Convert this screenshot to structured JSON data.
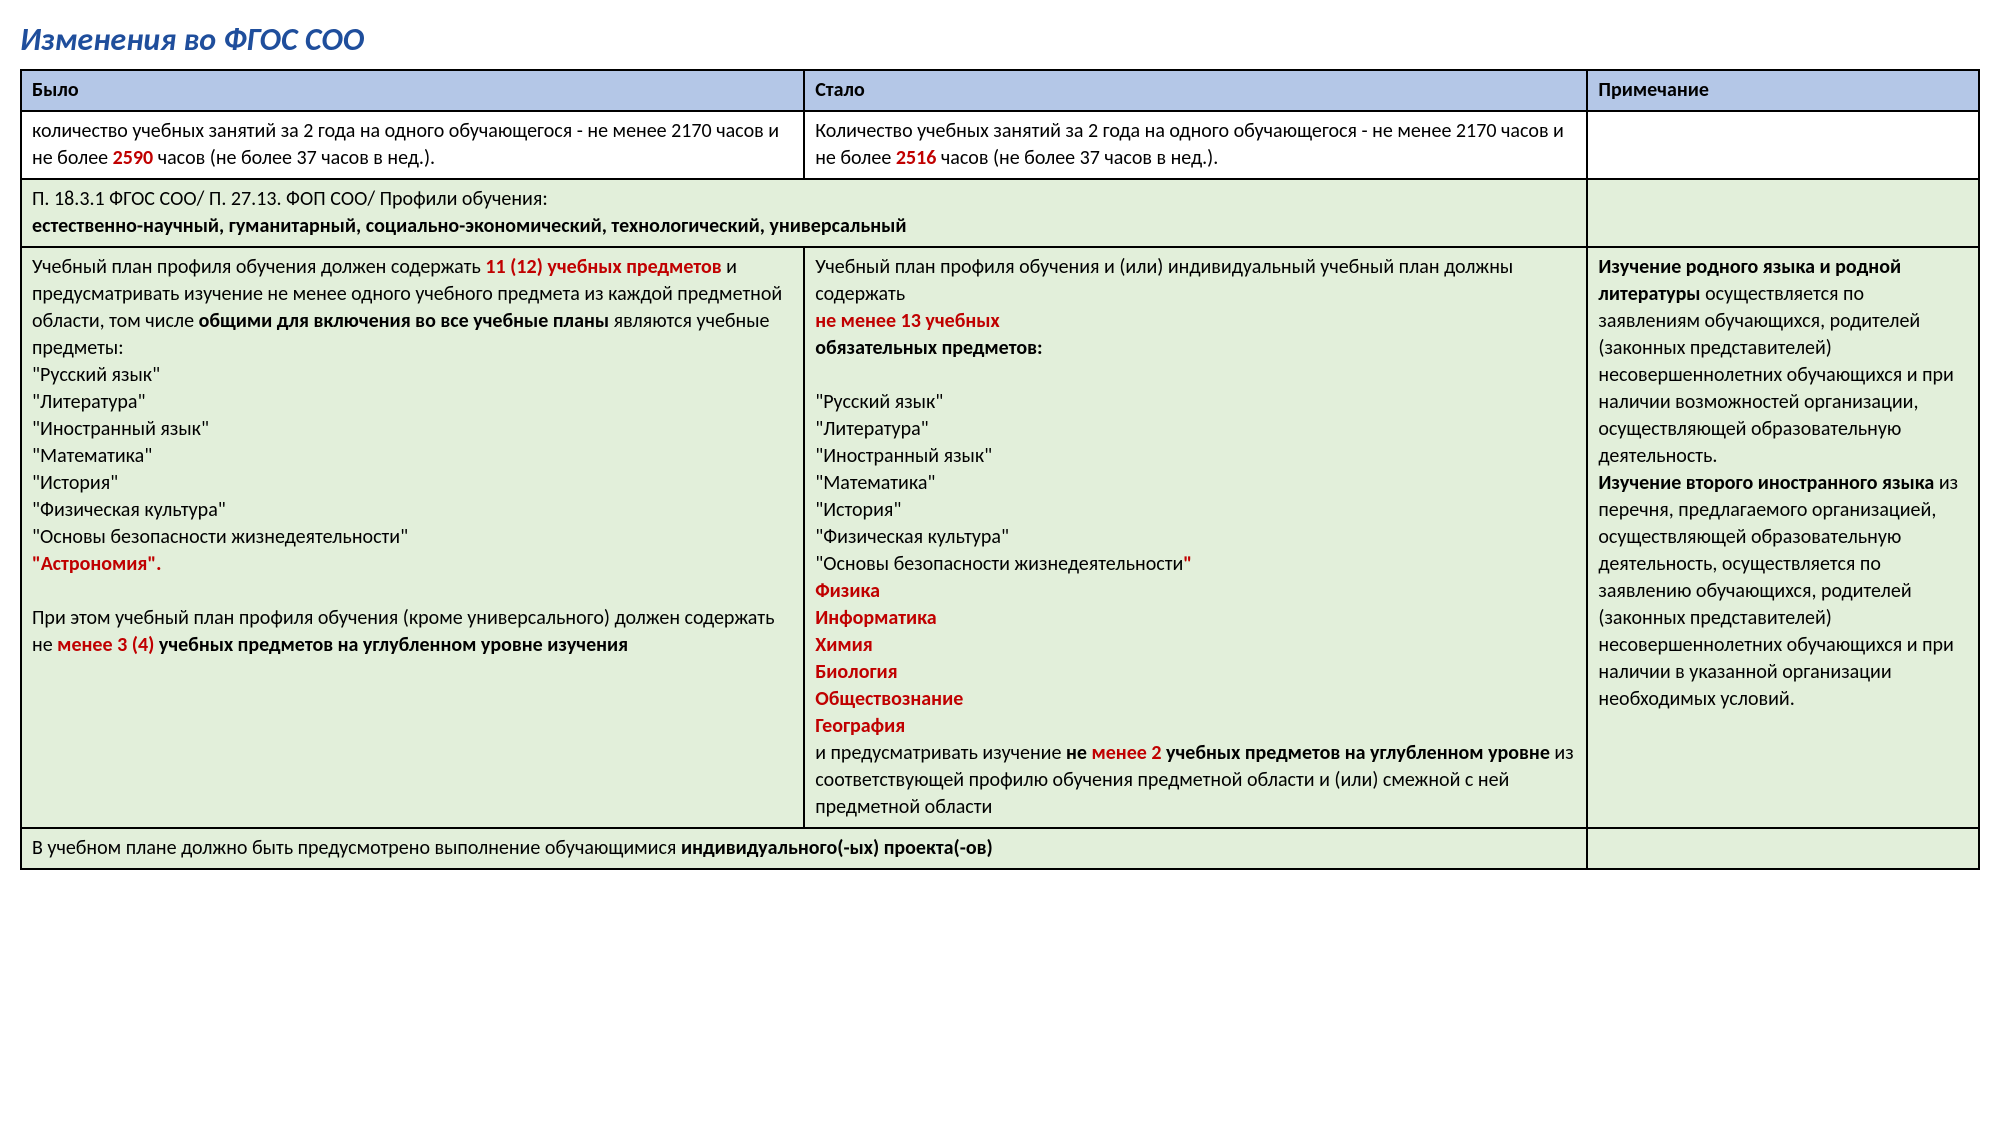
{
  "title": "Изменения во ФГОС СОО",
  "colors": {
    "title": "#1f4e9c",
    "header_bg": "#b4c7e7",
    "green_bg": "#e2efda",
    "white_bg": "#ffffff",
    "accent_red": "#c00000",
    "border": "#000000"
  },
  "column_widths_pct": [
    40,
    40,
    20
  ],
  "headers": {
    "was": "Было",
    "now": "Стало",
    "note": "Примечание"
  },
  "row_hours": {
    "was_pre": "количество учебных занятий за 2 года на одного обучающегося - не менее 2170 часов и не более ",
    "was_red": "2590",
    "was_post": " часов (не более 37 часов в нед.).",
    "now_pre": "Количество учебных занятий за 2 года на одного обучающегося - не менее 2170 часов и не более ",
    "now_red": "2516",
    "now_post": " часов (не более 37 часов в нед.)."
  },
  "row_profiles": {
    "line1": "П. 18.3.1 ФГОС СОО/ П. 27.13. ФОП СОО/ Профили обучения:",
    "line2": "естественно-научный, гуманитарный, социально-экономический, технологический, универсальный"
  },
  "row_plan": {
    "was": {
      "p1_a": "Учебный план профиля обучения должен содержать ",
      "p1_red": "11 (12) учебных предметов",
      "p1_b": " и предусматривать изучение не менее одного учебного предмета из каждой предметной области, том числе ",
      "p1_bold": "общими для включения во все учебные планы",
      "p1_c": " являются учебные предметы:",
      "subjects_black": [
        "\"Русский язык\"",
        "\"Литература\"",
        "\"Иностранный язык\"",
        "\"Математика\"",
        "\"История\"",
        "\"Физическая культура\"",
        "\"Основы безопасности жизнедеятельности\""
      ],
      "subjects_red": [
        "\"Астрономия\"."
      ],
      "p2_a": "При этом учебный план профиля обучения (кроме универсального) должен содержать не ",
      "p2_red": "менее 3 (4)",
      "p2_b": " ",
      "p2_bold": "учебных предметов на углубленном уровне изучения"
    },
    "now": {
      "p1_a": "Учебный план профиля обучения и (или) индивидуальный учебный план должны содержать",
      "p1_red": "не менее 13 учебных",
      "p1_bold": "обязательных предметов:",
      "subjects_black": [
        "\"Русский язык\"",
        "\"Литература\"",
        "\"Иностранный язык\"",
        "\"Математика\"",
        "\"История\"",
        "\"Физическая культура\""
      ],
      "subj_obzh_black": "\"Основы безопасности жизнедеятельности",
      "subj_obzh_red": "\"",
      "subjects_red": [
        "Физика",
        "Информатика",
        "Химия",
        "Биология",
        "Обществознание",
        "География"
      ],
      "p2_a": "и предусматривать изучение ",
      "p2_b1": "не ",
      "p2_red": "менее 2",
      "p2_b2": " учебных предметов на углубленном уровне",
      "p2_c": " из соответствующей профилю обучения предметной области и (или) смежной с ней предметной области"
    },
    "note": {
      "b1": "Изучение родного языка и родной литературы",
      "t1": " осуществляется по заявлениям обучающихся, родителей (законных представителей) несовершеннолетних обучающихся и при наличии возможностей организации, осуществляющей образовательную деятельность.",
      "b2": "Изучение второго иностранного языка",
      "t2": " из перечня, предлагаемого организацией, осуществляющей образовательную деятельность, осуществляется по заявлению обучающихся, родителей (законных представителей) несовершеннолетних обучающихся и при наличии в указанной организации необходимых условий."
    }
  },
  "row_project": {
    "pre": "В учебном плане должно быть предусмотрено выполнение обучающимися ",
    "bold": "индивидуального(-ых) проекта(-ов)"
  }
}
